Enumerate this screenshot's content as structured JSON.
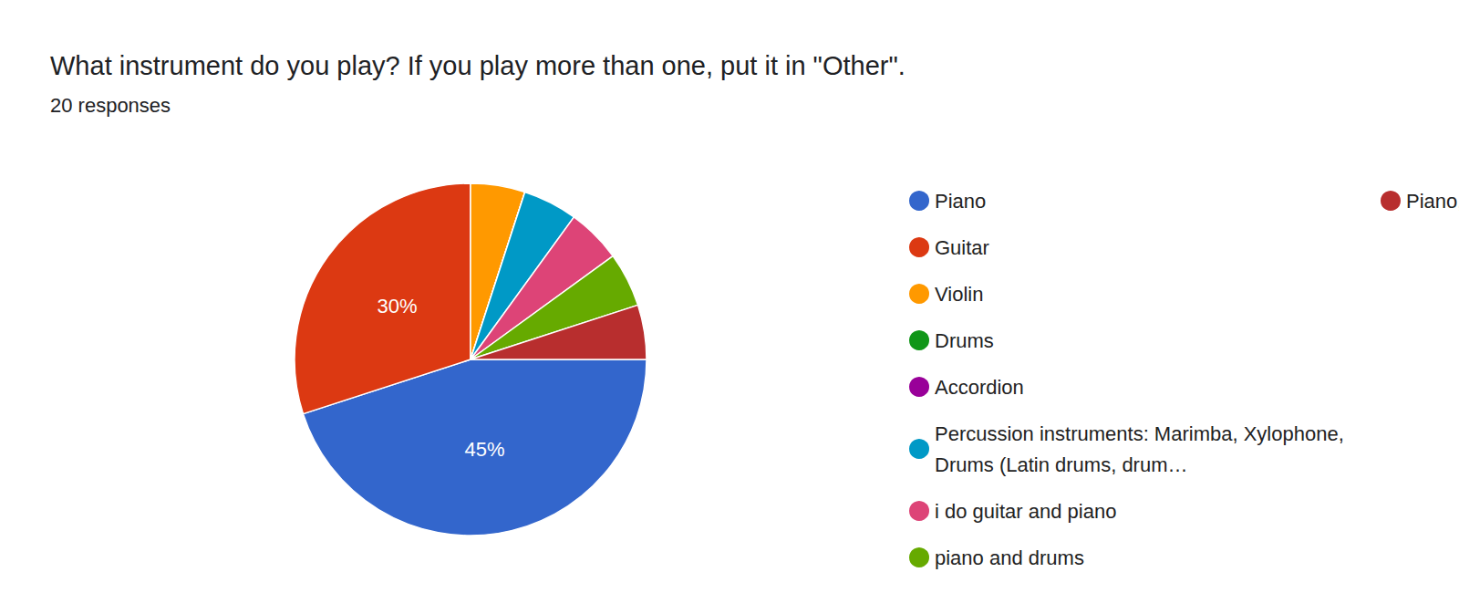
{
  "chart_data": {
    "type": "pie",
    "title": "What instrument do you play? If you play more than one, put it in \"Other\".",
    "subtitle": "20 responses",
    "categories": [
      "Piano",
      "Guitar",
      "Violin",
      "Drums",
      "Accordion",
      "Percussion instruments: Marimba, Xylophone, Drums (Latin drums, drum…",
      "i do guitar and piano",
      "piano and drums",
      "Piano, violin"
    ],
    "values": [
      45,
      30,
      5,
      0,
      0,
      5,
      5,
      5,
      5
    ],
    "value_labels": [
      "45%",
      "30%",
      null,
      null,
      null,
      null,
      null,
      null,
      null
    ],
    "colors": [
      "#3366cc",
      "#dc3912",
      "#ff9900",
      "#109618",
      "#990099",
      "#0099c6",
      "#dd4477",
      "#66aa00",
      "#b82e2e"
    ],
    "data_labels": true,
    "legend": "right"
  }
}
